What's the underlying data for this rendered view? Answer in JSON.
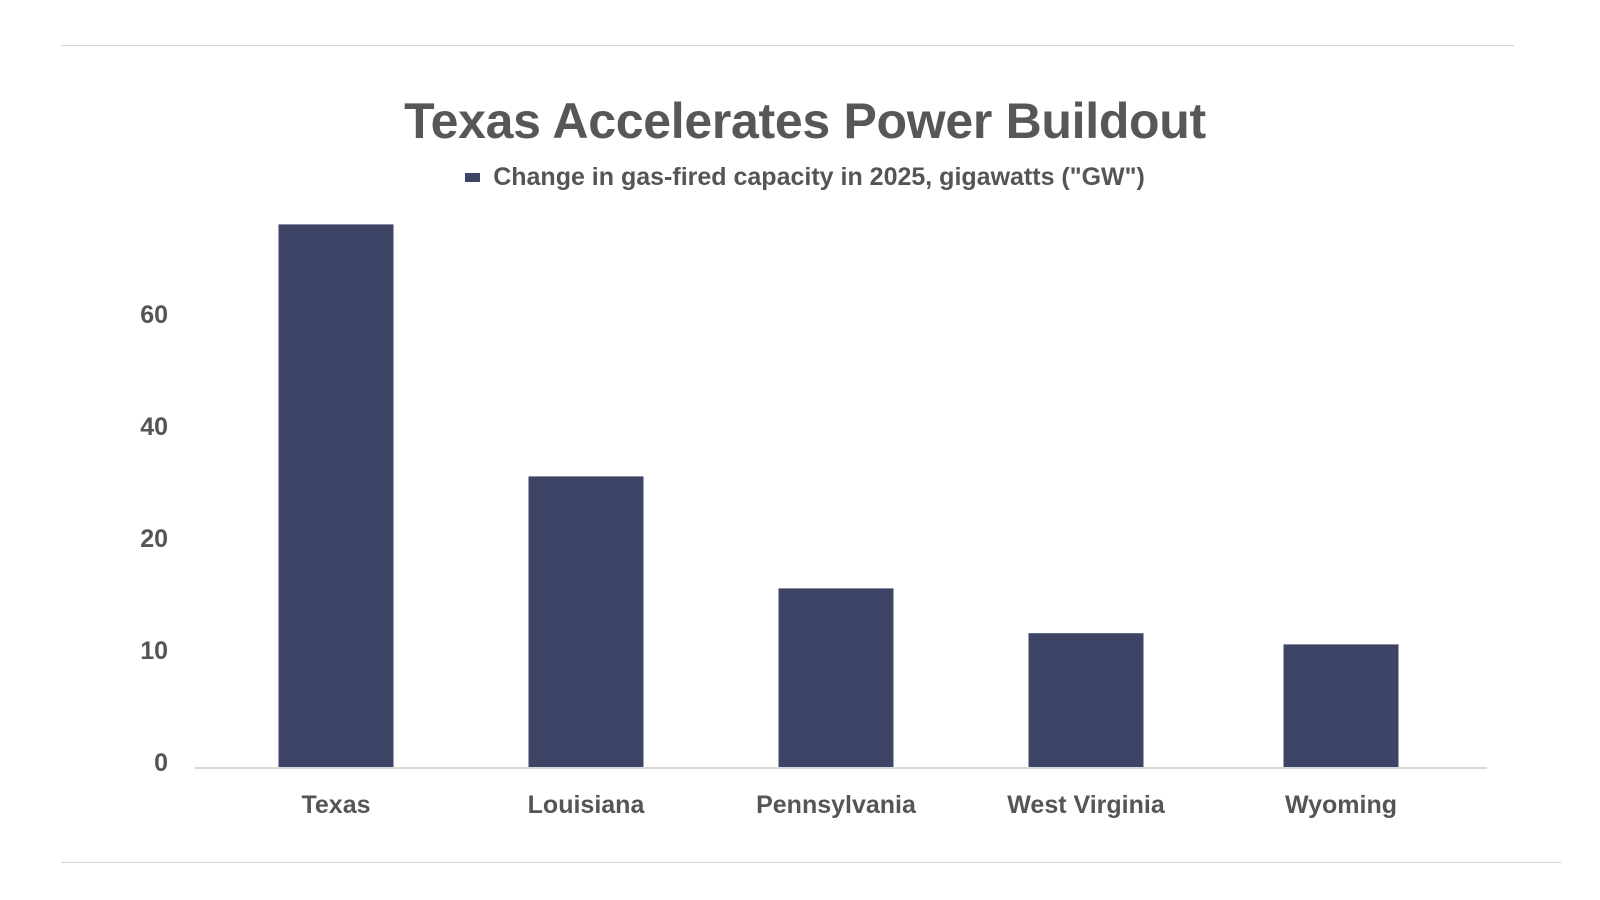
{
  "chart_data": {
    "type": "bar",
    "title": "Texas Accelerates Power Buildout",
    "legend": [
      "Change in gas-fired capacity in 2025, gigawatts (\"GW\")"
    ],
    "series": [
      {
        "name": "Change in gas-fired capacity in 2025, gigawatts (\"GW\")",
        "values": [
          76,
          31,
          15.5,
          11.5,
          10.5
        ]
      }
    ],
    "categories": [
      "Texas",
      "Louisiana",
      "Pennsylvania",
      "West Virginia",
      "Wyoming"
    ],
    "y_tick_labels": [
      "0",
      "10",
      "20",
      "40",
      "60"
    ],
    "xlabel": "",
    "ylabel": "",
    "grid": false,
    "bar_color": "#3d4465"
  }
}
